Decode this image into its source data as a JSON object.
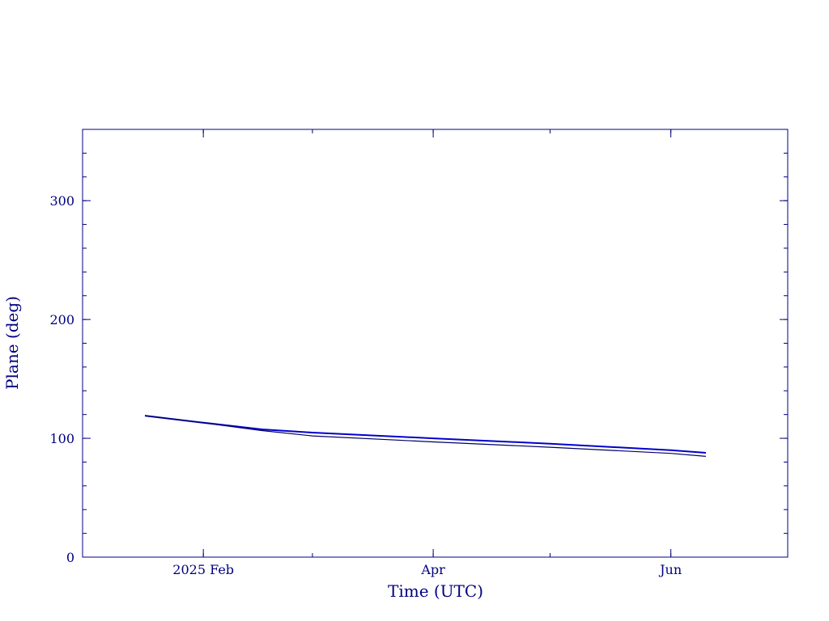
{
  "chart_data": {
    "type": "line",
    "xlabel": "Time (UTC)",
    "ylabel": "Plane (deg)",
    "xlim": [
      "2025-01-01",
      "2025-07-01"
    ],
    "ylim": [
      0,
      360
    ],
    "x_ticks": [
      {
        "date": "2025-02-01",
        "label": "2025 Feb"
      },
      {
        "date": "2025-04-01",
        "label": "Apr"
      },
      {
        "date": "2025-06-01",
        "label": "Jun"
      }
    ],
    "x_minor_ticks": [
      "2025-01-01",
      "2025-02-01",
      "2025-03-01",
      "2025-04-01",
      "2025-05-01",
      "2025-06-01",
      "2025-07-01"
    ],
    "y_ticks": [
      0,
      100,
      200,
      300
    ],
    "y_minor_step": 20,
    "grid": false,
    "colors": {
      "axes": "#000080",
      "series_primary": "#0000cc",
      "series_secondary": "#000066"
    },
    "series": [
      {
        "x": [
          "2025-01-17",
          "2025-01-31",
          "2025-02-16",
          "2025-03-01",
          "2025-04-01",
          "2025-05-01",
          "2025-06-01",
          "2025-06-10"
        ],
        "y": [
          119,
          113.5,
          107.5,
          104.8,
          100,
          95.5,
          90,
          87.8
        ],
        "color": "#0000cc",
        "width": 2
      },
      {
        "x": [
          "2025-01-17",
          "2025-01-31",
          "2025-02-16",
          "2025-03-01",
          "2025-04-01",
          "2025-05-01",
          "2025-06-01",
          "2025-06-10"
        ],
        "y": [
          119,
          113.5,
          106.5,
          102,
          97,
          92.5,
          87.3,
          84.8
        ],
        "color": "#000066",
        "width": 1.2
      }
    ]
  }
}
